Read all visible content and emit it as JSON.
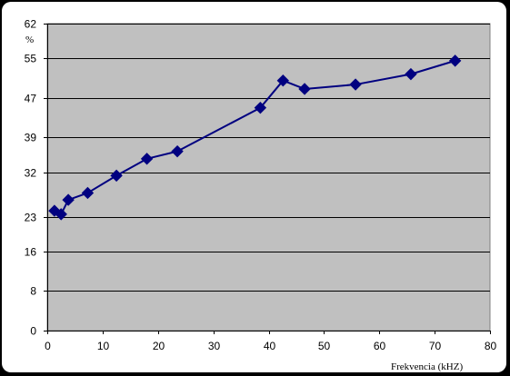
{
  "chart_data": {
    "type": "line",
    "title": "",
    "xlabel": "Frekvencia (kHZ)",
    "ylabel": "%",
    "xlim": [
      0,
      80
    ],
    "ylim": [
      0,
      62
    ],
    "x_ticks": [
      0,
      10,
      20,
      30,
      40,
      50,
      60,
      70,
      80
    ],
    "y_ticks": [
      0,
      8,
      16,
      23,
      32,
      39,
      47,
      55,
      62
    ],
    "grid": "horizontal",
    "colors": {
      "plot_background": "#c0c0c0",
      "series": "#000080",
      "gridline": "#000000"
    },
    "series": [
      {
        "marker": "diamond",
        "x": [
          1.3,
          2.5,
          3.8,
          7.3,
          12.5,
          18.0,
          23.5,
          38.5,
          42.6,
          46.5,
          55.7,
          65.7,
          73.7
        ],
        "y": [
          24.2,
          23.5,
          26.4,
          27.8,
          31.3,
          34.7,
          36.2,
          45.0,
          50.5,
          48.8,
          49.7,
          51.8,
          54.5
        ]
      }
    ]
  }
}
